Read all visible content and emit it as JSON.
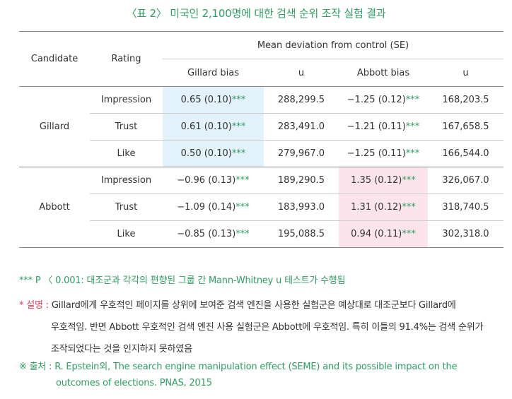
{
  "title": "〈표 2〉 미국인 2,100명에 대한 검색 순위 조작 실험 결과",
  "table": {
    "col_candidate": "Candidate",
    "col_rating": "Rating",
    "col_group": "Mean deviation from control (SE)",
    "sub_cols": [
      "Gillard bias",
      "u",
      "Abbott bias",
      "u"
    ],
    "rows": [
      {
        "candidate": "Gillard",
        "rating": "Impression",
        "g_val": "0.65 (0.10)",
        "g_sig": "***",
        "u1": "288,299.5",
        "a_val": "−1.25 (0.12)",
        "a_sig": "***",
        "u2": "168,203.5"
      },
      {
        "candidate": "",
        "rating": "Trust",
        "g_val": "0.61 (0.10)",
        "g_sig": "***",
        "u1": "283,491.0",
        "a_val": "−1.21 (0.11)",
        "a_sig": "***",
        "u2": "167,658.5"
      },
      {
        "candidate": "",
        "rating": "Like",
        "g_val": "0.50 (0.10)",
        "g_sig": "***",
        "u1": "279,967.0",
        "a_val": "−1.25 (0.11)",
        "a_sig": "***",
        "u2": "166,544.0"
      },
      {
        "candidate": "Abbott",
        "rating": "Impression",
        "g_val": "−0.96 (0.13)",
        "g_sig": "***",
        "u1": "189,290.5",
        "a_val": "1.35 (0.12)",
        "a_sig": "***",
        "u2": "326,067.0"
      },
      {
        "candidate": "",
        "rating": "Trust",
        "g_val": "−1.09 (0.14)",
        "g_sig": "***",
        "u1": "183,993.0",
        "a_val": "1.31 (0.12)",
        "a_sig": "***",
        "u2": "318,740.5"
      },
      {
        "candidate": "",
        "rating": "Like",
        "g_val": "−0.85 (0.13)",
        "g_sig": "***",
        "u1": "195,088.5",
        "a_val": "0.94 (0.11)",
        "a_sig": "***",
        "u2": "302,318.0"
      }
    ]
  },
  "notes": {
    "sig_note": "*** P 〈 0.001: 대조군과 각각의 편향된 그룹 간 Mann-Whitney u 테스트가 수행됨",
    "desc_label": "* 설명 :",
    "desc_line1": "Gillard에게 우호적인 페이지를 상위에 보여준 검색 엔진을 사용한 실험군은 예상대로 대조군보다 Gillard에",
    "desc_line2": "우호적임. 반면 Abbott 우호적인 검색 엔진 사용 실험군은 Abbott에 우호적임. 특히 이들의 91.4%는 검색 순위가",
    "desc_line3": "조작되었다는 것을 인지하지 못하였음",
    "source_label": "※ 출처 :",
    "source_line1": "R. Epstein외, The search engine manipulation effect (SEME) and its possible impact on the",
    "source_line2": "outcomes of elections. PNAS, 2015"
  },
  "colors": {
    "accent_green": "#2e9e62",
    "highlight_blue": "#e3f1fa",
    "highlight_pink": "#fbe4ec",
    "desc_label_red": "#d2445e"
  }
}
